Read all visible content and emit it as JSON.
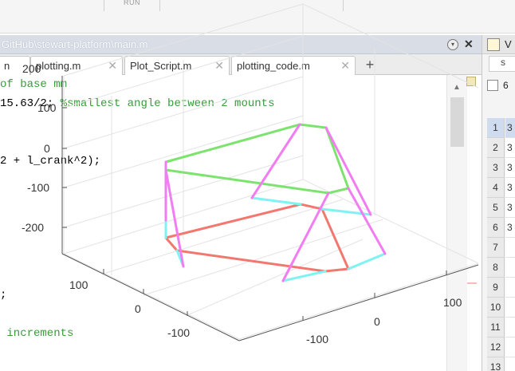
{
  "toolstrip": {
    "run_label": "RUN"
  },
  "editor_window": {
    "title": "GitHub\\stewart-platform\\main.m",
    "tabs": [
      {
        "label": "n"
      },
      {
        "label": "plotting.m"
      },
      {
        "label": "Plot_Script.m"
      },
      {
        "label": "plotting_code.m"
      }
    ],
    "add_tab": "+",
    "code_lines": [
      {
        "text": "of base mm",
        "kind": "comment"
      },
      {
        "text": "15.63/2; ",
        "kind": "code",
        "comment": "%smallest angle between 2 mounts"
      },
      {
        "text": "2 + l_crank^2);",
        "kind": "code"
      },
      {
        "text": ";",
        "kind": "code"
      },
      {
        "text": " increments",
        "kind": "comment"
      }
    ]
  },
  "workspace_panel": {
    "header": "V",
    "tab": "s",
    "size": "6",
    "rows": [
      {
        "num": "1",
        "value": "3"
      },
      {
        "num": "2",
        "value": "3"
      },
      {
        "num": "3",
        "value": "3"
      },
      {
        "num": "4",
        "value": "3"
      },
      {
        "num": "5",
        "value": "3"
      },
      {
        "num": "6",
        "value": "3"
      },
      {
        "num": "7",
        "value": ""
      },
      {
        "num": "8",
        "value": ""
      },
      {
        "num": "9",
        "value": ""
      },
      {
        "num": "10",
        "value": ""
      },
      {
        "num": "11",
        "value": ""
      },
      {
        "num": "12",
        "value": ""
      },
      {
        "num": "13",
        "value": ""
      }
    ]
  },
  "plot": {
    "z_ticks": [
      "200",
      "100",
      "0",
      "-100",
      "-200"
    ],
    "x_ticks": [
      "100",
      "0",
      "-100"
    ],
    "y_ticks": [
      "100",
      "0",
      "-100"
    ],
    "colors": {
      "top_platform": "#7de36f",
      "base": "#f2786f",
      "legs": "#f27df2",
      "cranks": "#7ff2f2"
    }
  }
}
